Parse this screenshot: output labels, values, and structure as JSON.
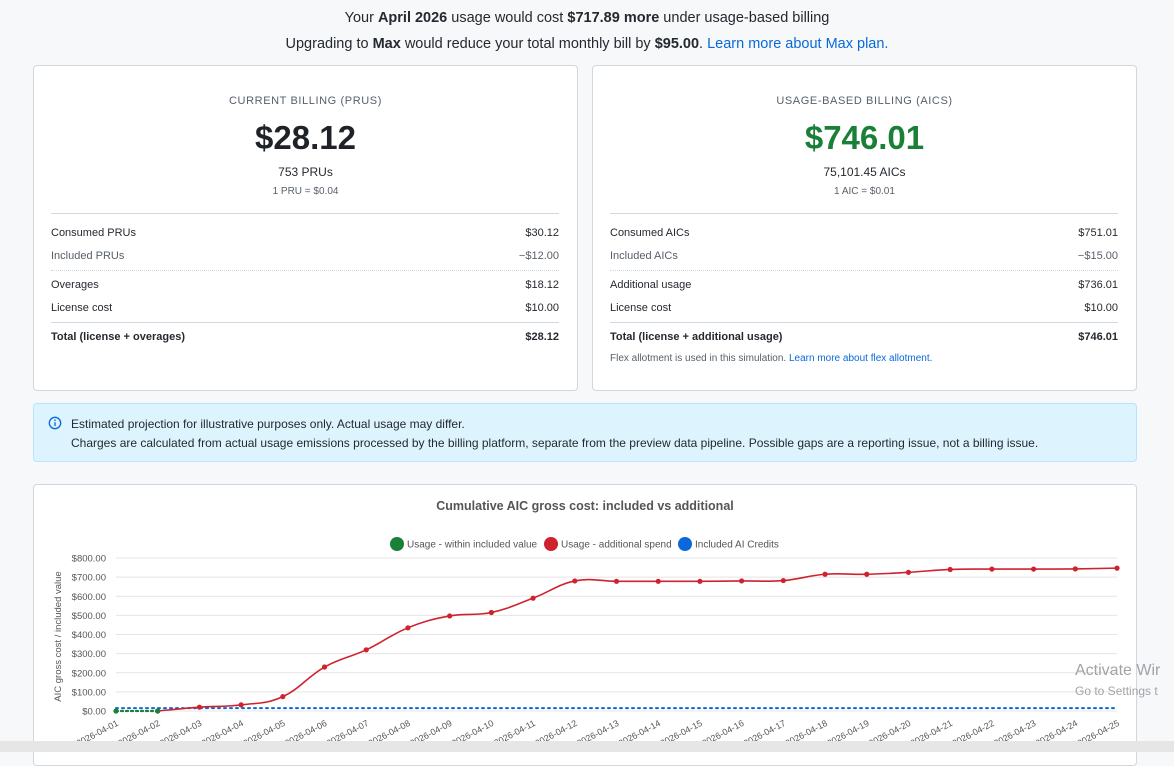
{
  "banner": {
    "line1_pre": "Your ",
    "line1_month": "April 2026",
    "line1_mid": " usage would cost ",
    "line1_amount": "$717.89 more",
    "line1_post": " under usage-based billing",
    "line2_pre": "Upgrading to ",
    "line2_plan": "Max",
    "line2_mid": " would reduce your total monthly bill by ",
    "line2_amount": "$95.00",
    "line2_post": ". ",
    "line2_link": "Learn more about Max plan."
  },
  "current": {
    "title": "CURRENT BILLING (PRUS)",
    "amount": "$28.12",
    "units": "753 PRUs",
    "rate": "1 PRU = $0.04",
    "rows": [
      {
        "label": "Consumed PRUs",
        "value": "$30.12"
      },
      {
        "label": "Included PRUs",
        "value": "−$12.00"
      },
      {
        "label": "Overages",
        "value": "$18.12"
      },
      {
        "label": "License cost",
        "value": "$10.00"
      },
      {
        "label": "Total (license + overages)",
        "value": "$28.12"
      }
    ]
  },
  "usage": {
    "title": "USAGE-BASED BILLING (AICS)",
    "amount": "$746.01",
    "amount_color": "#1a7f37",
    "units": "75,101.45 AICs",
    "rate": "1 AIC = $0.01",
    "rows": [
      {
        "label": "Consumed AICs",
        "value": "$751.01"
      },
      {
        "label": "Included AICs",
        "value": "−$15.00"
      },
      {
        "label": "Additional usage",
        "value": "$736.01"
      },
      {
        "label": "License cost",
        "value": "$10.00"
      },
      {
        "label": "Total (license + additional usage)",
        "value": "$746.01"
      }
    ],
    "note": "Flex allotment is used in this simulation. ",
    "note_link": "Learn more about flex allotment."
  },
  "info": {
    "icon": "info-icon",
    "line1": "Estimated projection for illustrative purposes only. Actual usage may differ.",
    "line2": "Charges are calculated from actual usage emissions processed by the billing platform, separate from the preview data pipeline. Possible gaps are a reporting issue, not a billing issue."
  },
  "watermark": {
    "line1": "Activate Wir",
    "line2": "Go to Settings t"
  },
  "chart_data": {
    "type": "line",
    "title": "Cumulative AIC gross cost: included vs additional",
    "ylabel": "AIC gross cost / included value",
    "xlabel": "",
    "ylim": [
      0,
      800
    ],
    "yticks": [
      "$0.00",
      "$100.00",
      "$200.00",
      "$300.00",
      "$400.00",
      "$500.00",
      "$600.00",
      "$700.00",
      "$800.00"
    ],
    "grid": true,
    "legend_position": "top",
    "x": [
      "2026-04-01",
      "2026-04-02",
      "2026-04-03",
      "2026-04-04",
      "2026-04-05",
      "2026-04-06",
      "2026-04-07",
      "2026-04-08",
      "2026-04-09",
      "2026-04-10",
      "2026-04-11",
      "2026-04-12",
      "2026-04-13",
      "2026-04-14",
      "2026-04-15",
      "2026-04-16",
      "2026-04-17",
      "2026-04-18",
      "2026-04-19",
      "2026-04-20",
      "2026-04-21",
      "2026-04-22",
      "2026-04-23",
      "2026-04-24",
      "2026-04-25"
    ],
    "series": [
      {
        "name": "Usage - within included value",
        "color": "#1a7f37",
        "style": "dotted",
        "values": [
          0,
          0,
          null,
          null,
          null,
          null,
          null,
          null,
          null,
          null,
          null,
          null,
          null,
          null,
          null,
          null,
          null,
          null,
          null,
          null,
          null,
          null,
          null,
          null,
          null
        ]
      },
      {
        "name": "Usage - additional spend",
        "color": "#cf222e",
        "style": "solid",
        "values": [
          null,
          0,
          20,
          32,
          75,
          230,
          320,
          435,
          497,
          515,
          590,
          680,
          678,
          678,
          678,
          680,
          682,
          715,
          715,
          725,
          740,
          742,
          742,
          743,
          747
        ]
      },
      {
        "name": "Included AI Credits",
        "color": "#0969da",
        "style": "dotted",
        "values": [
          15,
          15,
          15,
          15,
          15,
          15,
          15,
          15,
          15,
          15,
          15,
          15,
          15,
          15,
          15,
          15,
          15,
          15,
          15,
          15,
          15,
          15,
          15,
          15,
          15
        ]
      }
    ]
  }
}
